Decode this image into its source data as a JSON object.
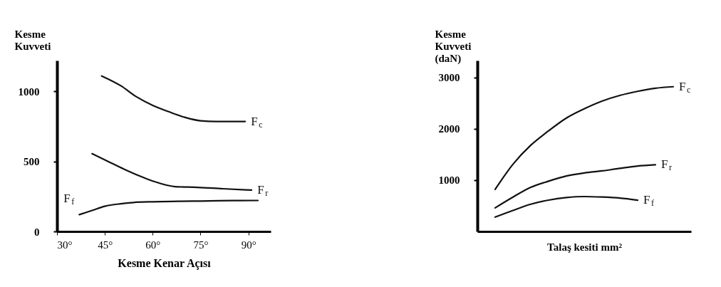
{
  "chart_data": [
    {
      "type": "line",
      "ylabel": "Kesme\nKuvveti",
      "xlabel": "Kesme Kenar Açısı",
      "xlim": [
        30,
        97
      ],
      "ylim": [
        0,
        1220
      ],
      "xticks": [
        {
          "value": 30,
          "label": "30°"
        },
        {
          "value": 45,
          "label": "45°"
        },
        {
          "value": 60,
          "label": "60°"
        },
        {
          "value": 75,
          "label": "75°"
        },
        {
          "value": 90,
          "label": "90°"
        }
      ],
      "yticks": [
        0,
        500,
        1000
      ],
      "line_style": "solid",
      "series": [
        {
          "name": "F$_{c}$",
          "color": "#111111",
          "x": [
            44,
            50,
            55,
            60,
            65,
            70,
            75,
            80,
            89
          ],
          "values": [
            1110,
            1040,
            960,
            900,
            855,
            815,
            790,
            785,
            785
          ]
        },
        {
          "name": "F$_{r}$",
          "color": "#111111",
          "x": [
            41,
            46,
            51,
            56,
            60,
            67,
            74,
            82,
            91
          ],
          "values": [
            555,
            500,
            445,
            395,
            360,
            320,
            315,
            305,
            295
          ]
        },
        {
          "name": "F$_{f}$",
          "color": "#111111",
          "x": [
            37,
            41,
            45,
            50,
            54,
            60,
            68,
            75,
            85,
            93
          ],
          "values": [
            120,
            150,
            180,
            198,
            207,
            212,
            215,
            217,
            220,
            221
          ]
        }
      ]
    },
    {
      "type": "line",
      "ylabel": "Kesme\nKuvveti\n(daN)",
      "xlabel": "Talaş kesiti mm²",
      "categories": [
        null,
        null,
        null,
        null,
        null,
        null,
        null,
        null,
        null,
        null,
        null
      ],
      "ylim": [
        0,
        3330
      ],
      "yticks": [
        1000,
        2000,
        3000
      ],
      "tick_labels": "y",
      "line_style": "solid",
      "series": [
        {
          "name": "F$_{c}$",
          "color": "#111111",
          "values": [
            820,
            1310,
            1680,
            1960,
            2210,
            2390,
            2540,
            2650,
            2730,
            2790,
            2820
          ]
        },
        {
          "name": "F$_{r}$",
          "color": "#111111",
          "values": [
            460,
            670,
            860,
            980,
            1080,
            1140,
            1180,
            1230,
            1275,
            1300,
            null
          ]
        },
        {
          "name": "F$_{f}$",
          "color": "#111111",
          "values": [
            280,
            410,
            530,
            610,
            660,
            680,
            670,
            650,
            610,
            null,
            null
          ]
        }
      ]
    }
  ]
}
